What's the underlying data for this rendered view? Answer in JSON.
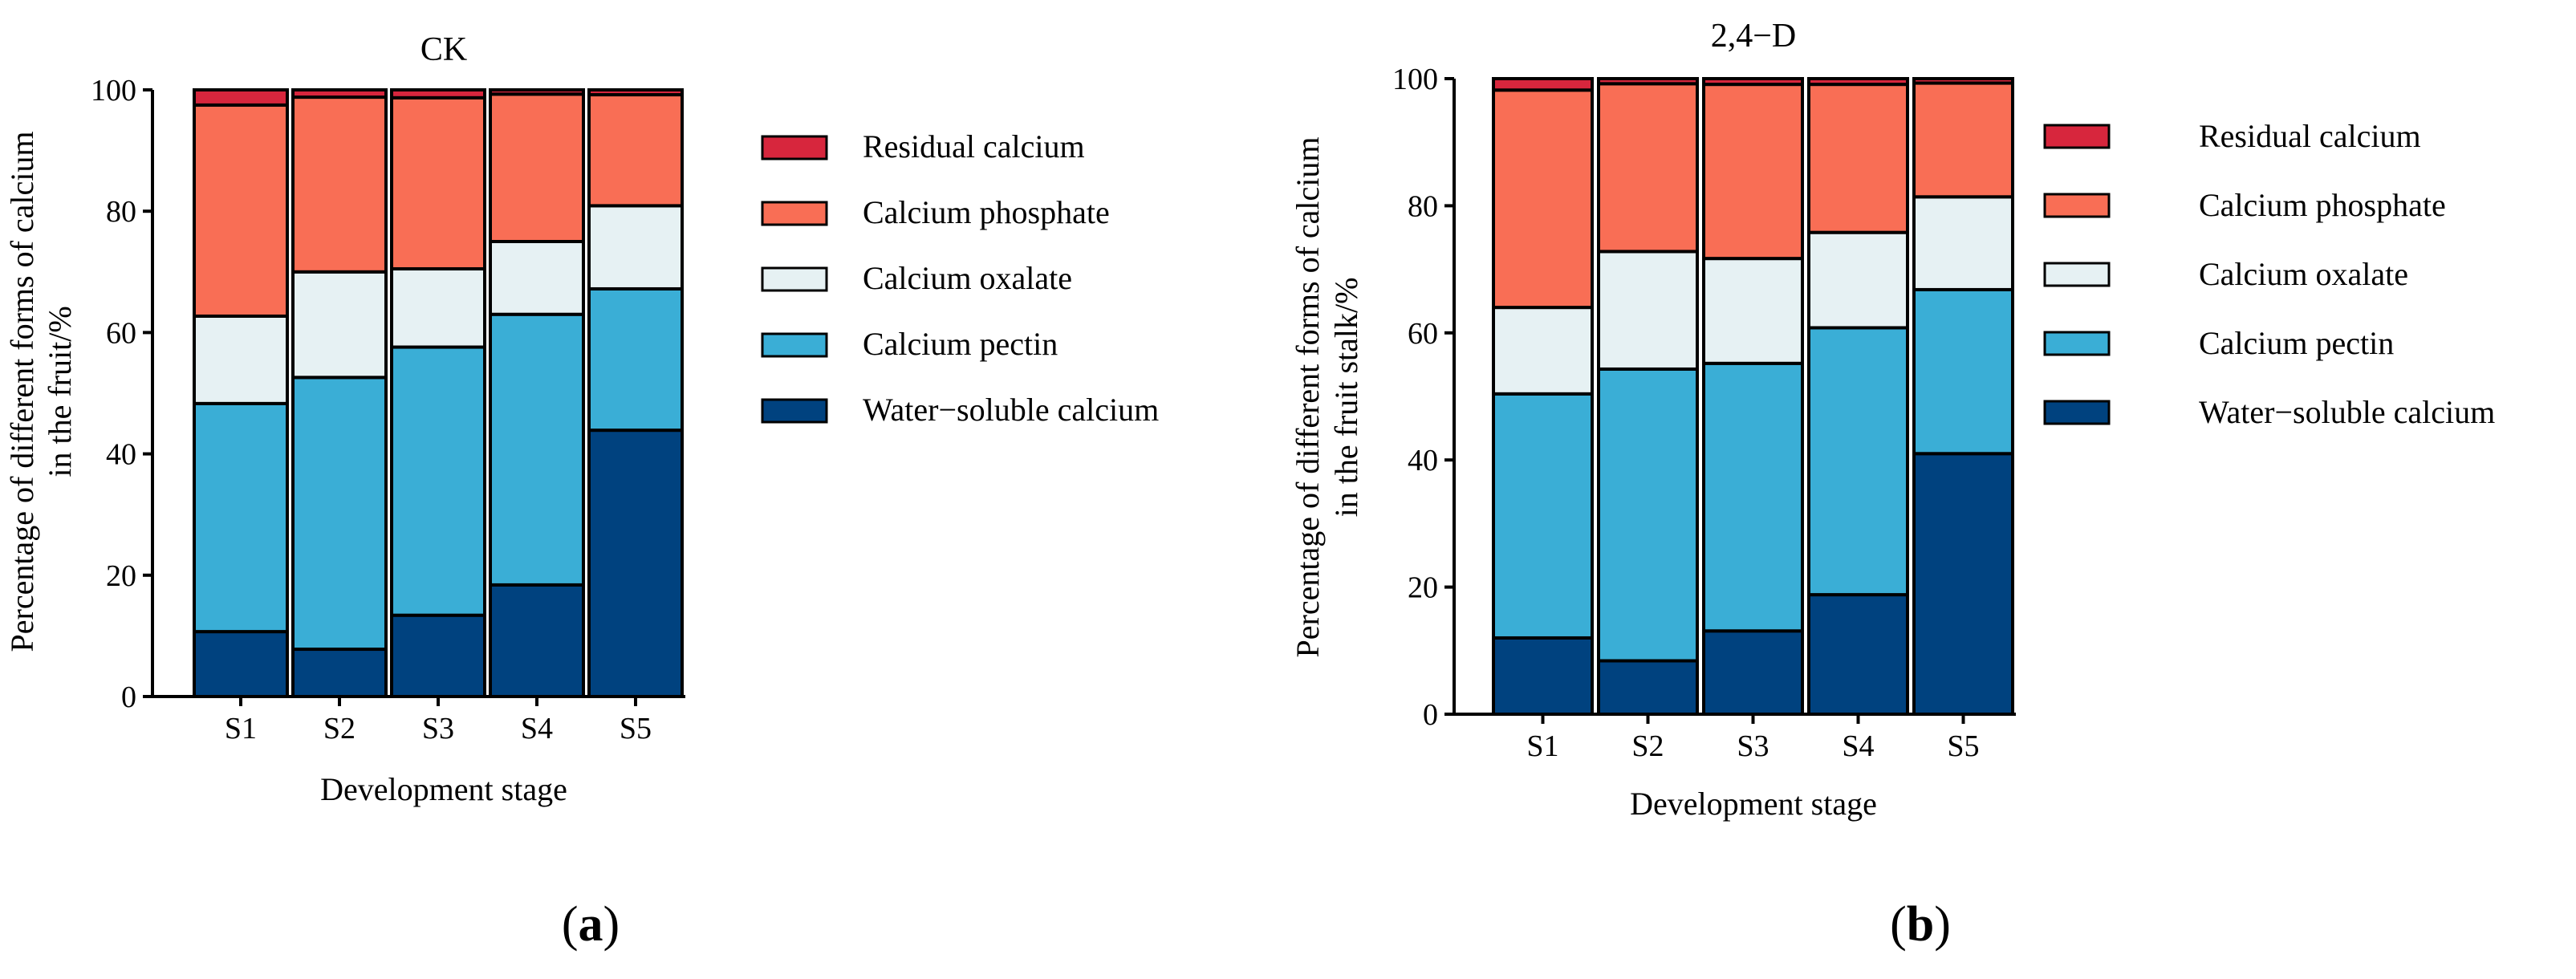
{
  "colors": {
    "residual": "#d7263d",
    "phosphate": "#f96e55",
    "oxalate": "#e6f1f3",
    "pectin": "#3aaed6",
    "water_soluble": "#00427f",
    "outline": "#000000"
  },
  "chart_data": [
    {
      "type": "bar",
      "stacked": true,
      "title": "CK",
      "xlabel": "Development stage",
      "ylabel_line1": "Percentage of different forms of calcium",
      "ylabel_line2": "in the fruit/%",
      "ylim": [
        0,
        100
      ],
      "yticks": [
        "0",
        "20",
        "40",
        "60",
        "80",
        "100"
      ],
      "categories": [
        "S1",
        "S2",
        "S3",
        "S4",
        "S5"
      ],
      "panel_label": {
        "open": "(",
        "letter": "a",
        "close": ")"
      },
      "legend": [
        "Residual calcium",
        "Calcium phosphate",
        "Calcium oxalate",
        "Calcium pectin",
        "Water−soluble calcium"
      ],
      "series": [
        {
          "name": "Water−soluble calcium",
          "color_key": "water_soluble",
          "values": [
            10.7,
            7.8,
            13.4,
            18.4,
            43.9
          ]
        },
        {
          "name": "Calcium pectin",
          "color_key": "pectin",
          "values": [
            37.6,
            44.8,
            44.2,
            44.6,
            23.3
          ]
        },
        {
          "name": "Calcium oxalate",
          "color_key": "oxalate",
          "values": [
            14.4,
            17.4,
            12.9,
            12.0,
            13.7
          ]
        },
        {
          "name": "Calcium phosphate",
          "color_key": "phosphate",
          "values": [
            34.8,
            28.8,
            28.2,
            24.3,
            18.3
          ]
        },
        {
          "name": "Residual calcium",
          "color_key": "residual",
          "values": [
            2.5,
            1.2,
            1.3,
            0.7,
            0.8
          ]
        }
      ]
    },
    {
      "type": "bar",
      "stacked": true,
      "title": "2,4−D",
      "xlabel": "Development stage",
      "ylabel_line1": "Percentage of different forms of calcium",
      "ylabel_line2": "in the fruit stalk/%",
      "ylim": [
        0,
        100
      ],
      "yticks": [
        "0",
        "20",
        "40",
        "60",
        "80",
        "100"
      ],
      "categories": [
        "S1",
        "S2",
        "S3",
        "S4",
        "S5"
      ],
      "panel_label": {
        "open": "(",
        "letter": "b",
        "close": ")"
      },
      "legend": [
        "Residual calcium",
        "Calcium phosphate",
        "Calcium oxalate",
        "Calcium pectin",
        "Water−soluble calcium"
      ],
      "series": [
        {
          "name": "Water−soluble calcium",
          "color_key": "water_soluble",
          "values": [
            12.0,
            8.4,
            13.1,
            18.8,
            41.0
          ]
        },
        {
          "name": "Calcium pectin",
          "color_key": "pectin",
          "values": [
            38.4,
            45.9,
            42.1,
            42.0,
            25.8
          ]
        },
        {
          "name": "Calcium oxalate",
          "color_key": "oxalate",
          "values": [
            13.6,
            18.5,
            16.5,
            15.0,
            14.6
          ]
        },
        {
          "name": "Calcium phosphate",
          "color_key": "phosphate",
          "values": [
            34.2,
            26.4,
            27.4,
            23.3,
            17.9
          ]
        },
        {
          "name": "Residual calcium",
          "color_key": "residual",
          "values": [
            1.8,
            0.8,
            0.9,
            0.9,
            0.7
          ]
        }
      ]
    }
  ]
}
